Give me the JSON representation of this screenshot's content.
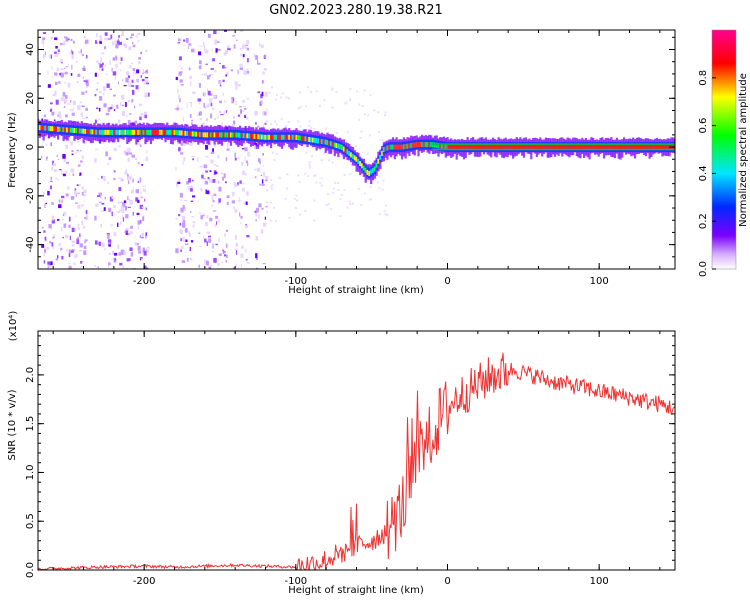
{
  "figure": {
    "title": "GN02.2023.280.19.38.R21"
  },
  "chart_data": [
    {
      "type": "heatmap",
      "xlabel": "Height of straight line (km)",
      "ylabel": "Frequency (Hz)",
      "xlim": [
        -270,
        150
      ],
      "ylim": [
        -50,
        48
      ],
      "xticks": [
        -200,
        -100,
        0,
        100
      ],
      "yticks": [
        -40,
        -20,
        0,
        20,
        40
      ],
      "colorbar": {
        "label": "Normalized spectral amplitude",
        "range": [
          0,
          1
        ],
        "ticks": [
          "0.0",
          "0.2",
          "0.4",
          "0.6",
          "0.8"
        ],
        "colormap": "rainbow",
        "colors": [
          "#ffffff",
          "#7a00ff",
          "#0028ff",
          "#00e5ff",
          "#00ff00",
          "#ffff00",
          "#ff0000",
          "#ff0090"
        ]
      },
      "trace": {
        "x": [
          -270,
          -250,
          -230,
          -200,
          -180,
          -160,
          -140,
          -120,
          -100,
          -90,
          -80,
          -70,
          -60,
          -52,
          -48,
          -45,
          -42,
          -38,
          -30,
          -20,
          -10,
          0,
          20,
          50,
          100,
          150
        ],
        "y": [
          8,
          7,
          6,
          6,
          6,
          5,
          5,
          4,
          4,
          3,
          2,
          0,
          -5,
          -11,
          -9,
          -5,
          -1,
          0,
          0,
          1,
          1,
          0,
          0,
          0,
          0,
          0
        ]
      }
    },
    {
      "type": "line",
      "xlabel": "Height of straight line (km)",
      "ylabel": "SNR (10 * v/v)",
      "scale_label": "(x10⁴)",
      "xlim": [
        -270,
        150
      ],
      "ylim": [
        0,
        2.45
      ],
      "xticks": [
        -200,
        -100,
        0,
        100
      ],
      "yticks": [
        "0.0",
        "0.5",
        "1.0",
        "1.5",
        "2.0"
      ],
      "color": "#ee3333",
      "series": [
        {
          "x": [
            -270,
            -250,
            -230,
            -200,
            -180,
            -160,
            -140,
            -120,
            -100,
            -90,
            -80,
            -70,
            -60,
            -50,
            -40,
            -35,
            -30,
            -25,
            -20,
            -15,
            -10,
            -5,
            0,
            5,
            10,
            15,
            20,
            25,
            30,
            35,
            40,
            45,
            50,
            55,
            60,
            65,
            70,
            80,
            90,
            100,
            110,
            120,
            130,
            140,
            150
          ],
          "y": [
            0.01,
            0.02,
            0.03,
            0.04,
            0.03,
            0.04,
            0.05,
            0.04,
            0.03,
            0.06,
            0.1,
            0.18,
            0.25,
            0.3,
            0.4,
            0.5,
            0.65,
            0.85,
            1.1,
            1.25,
            1.4,
            1.55,
            1.65,
            1.75,
            1.8,
            1.85,
            1.9,
            1.95,
            2.0,
            2.02,
            2.05,
            2.05,
            2.02,
            2.0,
            1.98,
            1.95,
            1.93,
            1.9,
            1.87,
            1.83,
            1.8,
            1.77,
            1.73,
            1.7,
            1.65
          ]
        }
      ]
    }
  ]
}
